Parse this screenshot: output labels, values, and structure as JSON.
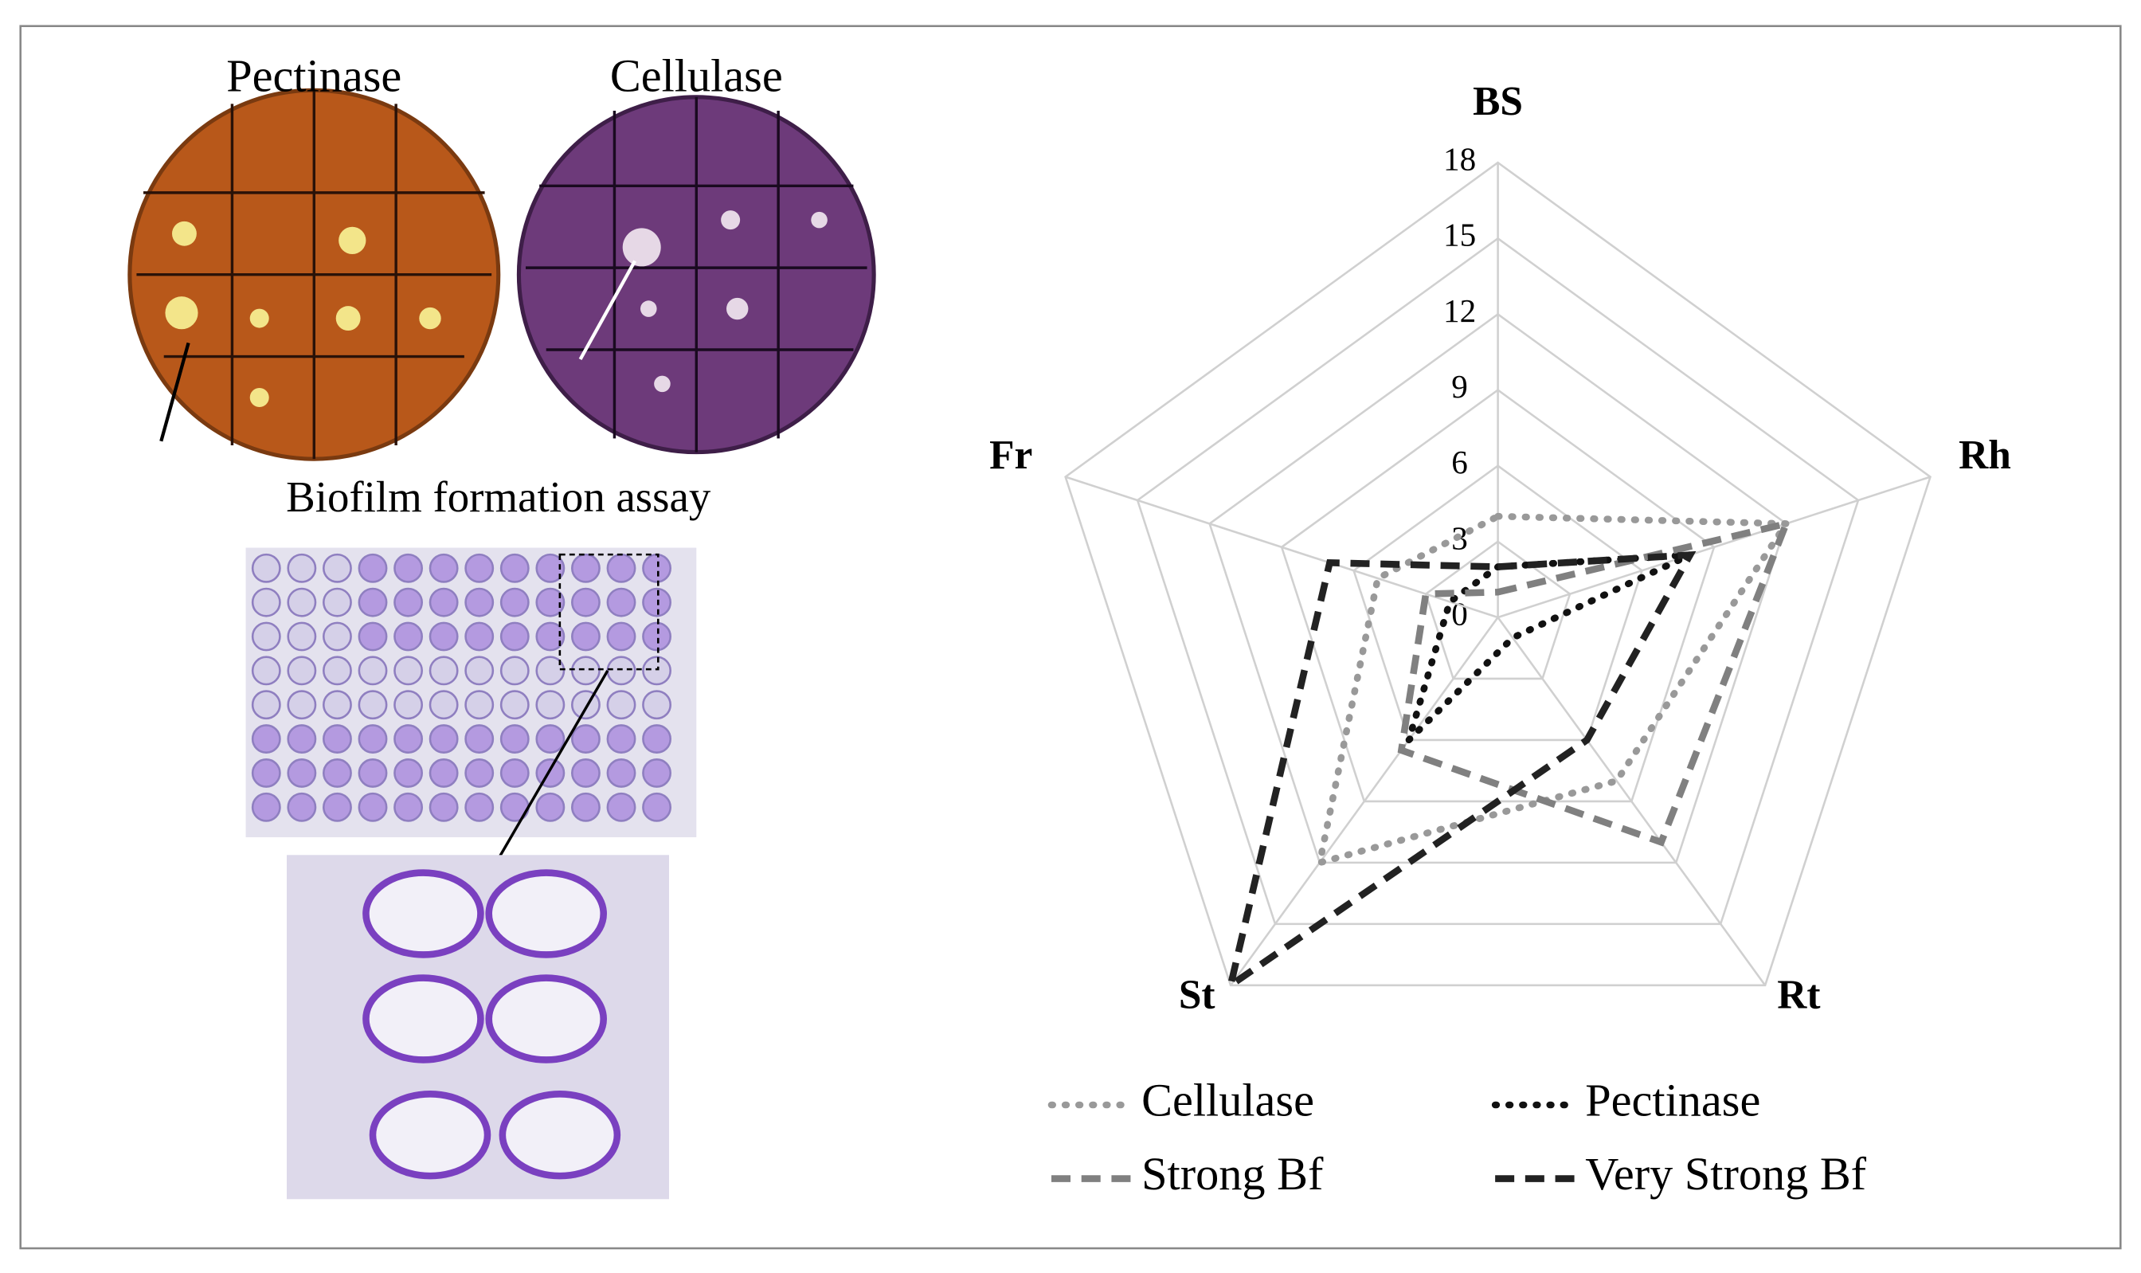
{
  "panel_labels": {
    "pectinase": "Pectinase",
    "cellulase": "Cellulase",
    "biofilm": "Biofilm formation assay"
  },
  "chart_data": {
    "type": "radar",
    "categories": [
      "BS",
      "Rh",
      "Rt",
      "St",
      "Fr"
    ],
    "ylim": [
      0,
      18
    ],
    "yticks": [
      0,
      3,
      6,
      9,
      12,
      15,
      18
    ],
    "grid": true,
    "legend": "bottom",
    "series": [
      {
        "name": "Cellulase",
        "color": "#999999",
        "dash": "dotted",
        "values": [
          4,
          12,
          8,
          12,
          5
        ]
      },
      {
        "name": "Pectinase",
        "color": "#111111",
        "dash": "dotted",
        "values": [
          2,
          8,
          1,
          6,
          2
        ]
      },
      {
        "name": "Strong Bf",
        "color": "#808080",
        "dash": "dashed",
        "values": [
          1,
          12,
          11,
          6.5,
          3
        ]
      },
      {
        "name": "Very Strong Bf",
        "color": "#222222",
        "dash": "dashed",
        "values": [
          2,
          8,
          6,
          18,
          7
        ]
      }
    ]
  }
}
